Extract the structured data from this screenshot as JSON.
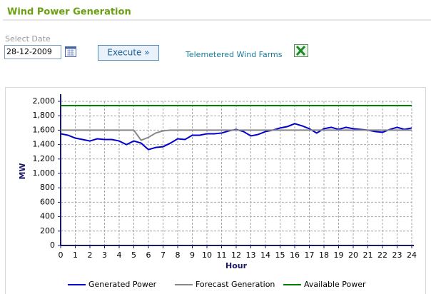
{
  "header": {
    "title": "Wind Power Generation"
  },
  "form": {
    "date_label": "Select Date",
    "date_value": "28-12-2009",
    "button": "Execute »",
    "link": "Telemetered Wind Farms"
  },
  "chart_data": {
    "type": "line",
    "ylabel": "MW",
    "xlabel": "Hour",
    "x": [
      0,
      0.5,
      1,
      1.5,
      2,
      2.5,
      3,
      3.5,
      4,
      4.5,
      5,
      5.5,
      6,
      6.5,
      7,
      7.5,
      8,
      8.5,
      9,
      9.5,
      10,
      10.5,
      11,
      11.5,
      12,
      12.5,
      13,
      13.5,
      14,
      14.5,
      15,
      15.5,
      16,
      16.5,
      17,
      17.5,
      18,
      18.5,
      19,
      19.5,
      20,
      20.5,
      21,
      21.5,
      22,
      22.5,
      23,
      23.5,
      24
    ],
    "series": [
      {
        "name": "Generated Power",
        "color": "#0000cc",
        "values": [
          1550,
          1530,
          1490,
          1470,
          1450,
          1480,
          1470,
          1470,
          1450,
          1400,
          1450,
          1420,
          1330,
          1360,
          1370,
          1420,
          1480,
          1470,
          1530,
          1530,
          1550,
          1550,
          1560,
          1590,
          1610,
          1580,
          1520,
          1540,
          1580,
          1600,
          1630,
          1650,
          1690,
          1660,
          1620,
          1560,
          1620,
          1640,
          1610,
          1640,
          1620,
          1610,
          1600,
          1580,
          1570,
          1610,
          1640,
          1610,
          1630
        ]
      },
      {
        "name": "Forecast Generation",
        "color": "#888888",
        "values": [
          1600,
          1600,
          1600,
          1600,
          1600,
          1600,
          1600,
          1600,
          1600,
          1600,
          1600,
          1460,
          1500,
          1560,
          1590,
          1600,
          1600,
          1600,
          1600,
          1600,
          1600,
          1600,
          1600,
          1600,
          1600,
          1600,
          1600,
          1600,
          1600,
          1600,
          1600,
          1600,
          1600,
          1600,
          1600,
          1600,
          1600,
          1600,
          1600,
          1600,
          1600,
          1600,
          1600,
          1600,
          1600,
          1600,
          1600,
          1600,
          1600
        ]
      },
      {
        "name": "Available Power",
        "color": "#008000",
        "values": [
          1940,
          1940,
          1940,
          1940,
          1940,
          1940,
          1940,
          1940,
          1940,
          1940,
          1940,
          1940,
          1940,
          1940,
          1940,
          1940,
          1940,
          1940,
          1940,
          1940,
          1940,
          1940,
          1940,
          1940,
          1940,
          1940,
          1940,
          1940,
          1940,
          1940,
          1940,
          1940,
          1940,
          1940,
          1940,
          1940,
          1940,
          1940,
          1940,
          1940,
          1940,
          1940,
          1940,
          1940,
          1940,
          1940,
          1940,
          1940,
          1940
        ]
      }
    ],
    "xlim": [
      0,
      24
    ],
    "xticks": [
      0,
      1,
      2,
      3,
      4,
      5,
      6,
      7,
      8,
      9,
      10,
      11,
      12,
      13,
      14,
      15,
      16,
      17,
      18,
      19,
      20,
      21,
      22,
      23,
      24
    ],
    "ylim": [
      0,
      2000
    ],
    "yticks": [
      0,
      200,
      400,
      600,
      800,
      {
        "value": 1000,
        "label": "1,000"
      },
      {
        "value": 1200,
        "label": "1,200"
      },
      {
        "value": 1400,
        "label": "1,400"
      },
      {
        "value": 1600,
        "label": "1,600"
      },
      {
        "value": 1800,
        "label": "1,800"
      },
      {
        "value": 2000,
        "label": "2,000"
      }
    ],
    "grid": true,
    "legend": "bottom"
  }
}
